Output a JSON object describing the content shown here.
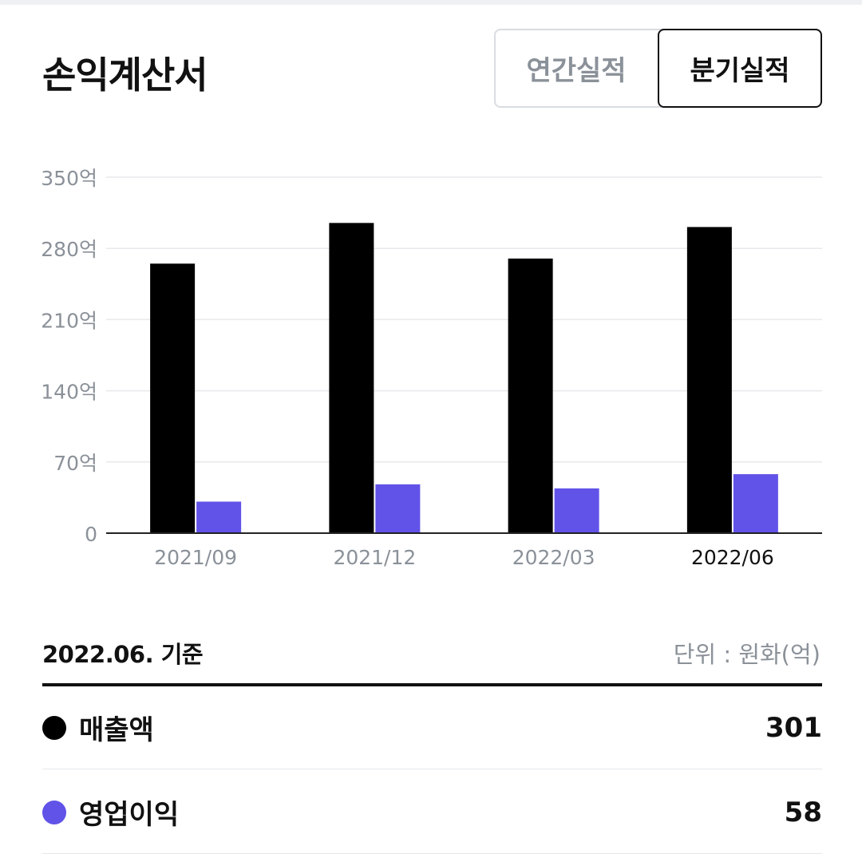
{
  "header": {
    "title": "손익계산서",
    "tabs": [
      {
        "label": "연간실적",
        "selected": false
      },
      {
        "label": "분기실적",
        "selected": true
      }
    ]
  },
  "chart_data": {
    "type": "bar",
    "categories": [
      "2021/09",
      "2021/12",
      "2022/03",
      "2022/06"
    ],
    "highlighted_category": "2022/06",
    "series": [
      {
        "name": "매출액",
        "color": "#000000",
        "values": [
          265,
          305,
          270,
          301
        ]
      },
      {
        "name": "영업이익",
        "color": "#6153e8",
        "values": [
          31,
          48,
          44,
          58
        ]
      }
    ],
    "yticks": [
      0,
      70,
      140,
      210,
      280,
      350
    ],
    "ytick_labels": [
      "0",
      "70억",
      "140억",
      "210억",
      "280억",
      "350억"
    ],
    "ylim": [
      0,
      350
    ],
    "grid": true,
    "legend": "none"
  },
  "summary": {
    "basis": "2022.06. 기준",
    "unit": "단위 : 원화(억)",
    "rows": [
      {
        "label": "매출액",
        "value": "301",
        "color": "#000000"
      },
      {
        "label": "영업이익",
        "value": "58",
        "color": "#6153e8"
      }
    ]
  }
}
